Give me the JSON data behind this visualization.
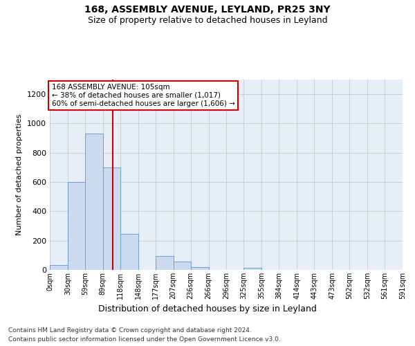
{
  "title1": "168, ASSEMBLY AVENUE, LEYLAND, PR25 3NY",
  "title2": "Size of property relative to detached houses in Leyland",
  "xlabel": "Distribution of detached houses by size in Leyland",
  "ylabel": "Number of detached properties",
  "footnote1": "Contains HM Land Registry data © Crown copyright and database right 2024.",
  "footnote2": "Contains public sector information licensed under the Open Government Licence v3.0.",
  "annotation_line1": "168 ASSEMBLY AVENUE: 105sqm",
  "annotation_line2": "← 38% of detached houses are smaller (1,017)",
  "annotation_line3": "60% of semi-detached houses are larger (1,606) →",
  "property_size": 105,
  "bin_edges": [
    0,
    30,
    59,
    89,
    118,
    148,
    177,
    207,
    236,
    266,
    296,
    325,
    355,
    384,
    414,
    443,
    473,
    502,
    532,
    561,
    591
  ],
  "bar_heights": [
    35,
    600,
    930,
    700,
    245,
    0,
    95,
    55,
    20,
    0,
    0,
    15,
    0,
    0,
    0,
    0,
    0,
    0,
    0,
    0
  ],
  "bar_color": "#ccdaf0",
  "bar_edgecolor": "#6a9fd8",
  "redline_color": "#cc0000",
  "annotation_box_color": "#cc0000",
  "grid_color": "#c8d0dc",
  "bg_color": "#e8eef8",
  "ylim": [
    0,
    1300
  ],
  "yticks": [
    0,
    200,
    400,
    600,
    800,
    1000,
    1200
  ]
}
